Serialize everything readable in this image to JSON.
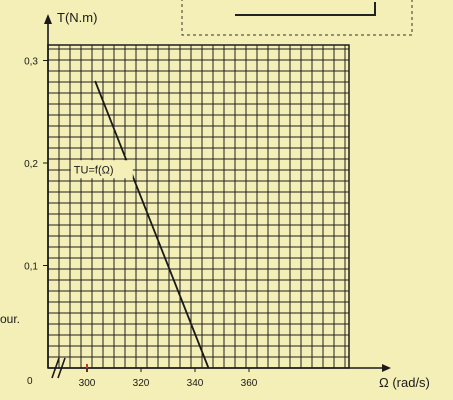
{
  "colors": {
    "background": "#f4efb6",
    "grid": "#1f1f1f",
    "line": "#1a1a1a",
    "origin_mark": "#c0392b"
  },
  "margin_text": "our.",
  "chart_data": {
    "type": "line",
    "title": "",
    "xlabel": "Ω (rad/s)",
    "ylabel": "T(N.m)",
    "origin_label": "0",
    "xlim": [
      300,
      370
    ],
    "ylim": [
      0,
      0.32
    ],
    "xticks": [
      300,
      320,
      340,
      360
    ],
    "xtick_labels": [
      "300",
      "320",
      "340",
      "360"
    ],
    "yticks": [
      0.1,
      0.2,
      0.3
    ],
    "ytick_labels": [
      "0,1",
      "0,2",
      "0,3"
    ],
    "grid": true,
    "axis_break": true,
    "series": [
      {
        "name": "TU=f(Ω)",
        "x": [
          303,
          345
        ],
        "y": [
          0.28,
          0
        ]
      }
    ],
    "annotations": [
      {
        "text": "TU=f(Ω)",
        "x": 304,
        "y": 0.19
      }
    ]
  }
}
